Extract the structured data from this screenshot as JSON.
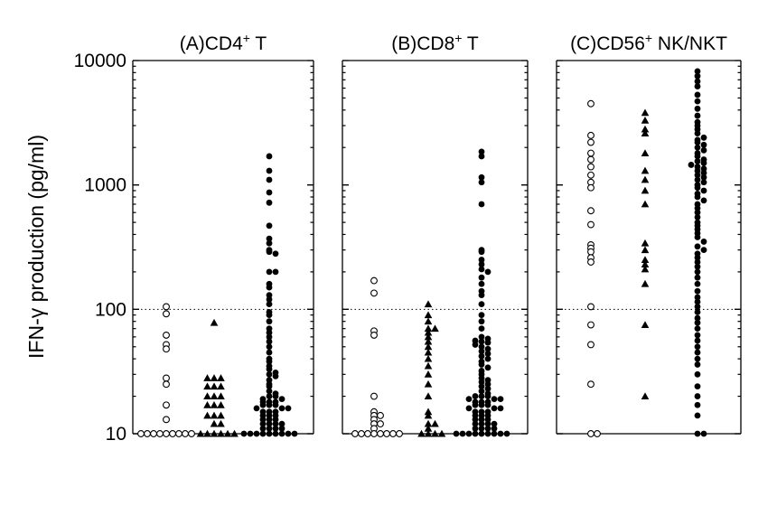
{
  "chart_data": {
    "type": "scatter",
    "ylabel": "IFN-γ production (pg/ml)",
    "y_scale": "log",
    "ylim": [
      10,
      10000
    ],
    "y_ticks": [
      10,
      100,
      1000,
      10000
    ],
    "y_tick_labels": [
      "10",
      "100",
      "1000",
      "10000"
    ],
    "reference_line": 100,
    "series_markers": [
      "open-circle",
      "filled-triangle",
      "filled-circle"
    ],
    "panels": [
      {
        "title": "(A)CD4",
        "title_sup": "+",
        "title_suffix": " T",
        "series": [
          {
            "marker": "open-circle",
            "values": [
              105,
              92,
              62,
              52,
              48,
              28,
              25,
              17,
              13,
              10,
              10,
              10,
              10,
              10,
              10,
              10,
              10,
              10
            ]
          },
          {
            "marker": "filled-triangle",
            "values": [
              78,
              28,
              28,
              28,
              24,
              24,
              24,
              20,
              20,
              20,
              17,
              17,
              17,
              14,
              14,
              14,
              12,
              12,
              10,
              10,
              10,
              10,
              10,
              10
            ]
          },
          {
            "marker": "filled-circle",
            "values": [
              1700,
              1300,
              1100,
              870,
              720,
              470,
              370,
              340,
              300,
              290,
              280,
              200,
              200,
              160,
              150,
              130,
              120,
              110,
              95,
              90,
              80,
              70,
              65,
              60,
              55,
              50,
              45,
              40,
              38,
              35,
              33,
              31,
              30,
              29,
              27,
              25,
              24,
              22,
              21,
              20,
              20,
              19,
              19,
              18,
              18,
              18,
              17,
              17,
              17,
              16,
              16,
              16,
              15,
              15,
              15,
              14,
              14,
              14,
              13,
              13,
              13,
              12,
              12,
              12,
              12,
              11,
              11,
              11,
              11,
              10,
              10,
              10,
              10,
              10,
              10,
              10,
              10,
              10
            ]
          }
        ]
      },
      {
        "title": "(B)CD8",
        "title_sup": "+",
        "title_suffix": " T",
        "series": [
          {
            "marker": "open-circle",
            "values": [
              170,
              135,
              67,
              62,
              20,
              15,
              14,
              14,
              13,
              12,
              12,
              11,
              10,
              10,
              10,
              10,
              10,
              10,
              10,
              10
            ]
          },
          {
            "marker": "filled-triangle",
            "values": [
              110,
              90,
              80,
              70,
              70,
              65,
              60,
              55,
              50,
              45,
              40,
              35,
              30,
              25,
              20,
              15,
              14,
              12,
              12,
              11,
              10,
              10,
              10,
              10
            ]
          },
          {
            "marker": "filled-circle",
            "values": [
              1850,
              1700,
              1150,
              1050,
              700,
              300,
              290,
              250,
              230,
              210,
              200,
              180,
              160,
              140,
              130,
              110,
              90,
              80,
              70,
              60,
              58,
              56,
              55,
              54,
              52,
              50,
              48,
              46,
              44,
              42,
              40,
              38,
              36,
              34,
              32,
              30,
              28,
              27,
              26,
              25,
              24,
              23,
              22,
              21,
              20,
              20,
              20,
              19,
              19,
              19,
              18,
              18,
              18,
              17,
              17,
              17,
              16,
              16,
              16,
              15,
              15,
              15,
              14,
              14,
              14,
              13,
              13,
              13,
              12,
              12,
              12,
              12,
              11,
              11,
              11,
              11,
              10,
              10,
              10,
              10,
              10,
              10,
              10,
              10,
              10
            ]
          }
        ]
      },
      {
        "title": "(C)CD56",
        "title_sup": "+",
        "title_suffix": " NK/NKT",
        "series": [
          {
            "marker": "open-circle",
            "values": [
              4500,
              2500,
              2200,
              1800,
              1600,
              1400,
              1200,
              1050,
              950,
              620,
              480,
              330,
              310,
              290,
              260,
              240,
              105,
              75,
              52,
              25,
              10,
              10
            ]
          },
          {
            "marker": "filled-triangle",
            "values": [
              3800,
              3300,
              2800,
              2600,
              1800,
              1300,
              1100,
              900,
              700,
              340,
              300,
              250,
              230,
              210,
              160,
              75,
              20
            ]
          },
          {
            "marker": "filled-circle",
            "values": [
              8200,
              7500,
              6800,
              6200,
              5300,
              4700,
              4100,
              3600,
              3200,
              3000,
              2800,
              2600,
              2400,
              2300,
              2200,
              2100,
              2000,
              1900,
              1800,
              1700,
              1600,
              1550,
              1500,
              1450,
              1400,
              1350,
              1300,
              1250,
              1200,
              1150,
              1100,
              1050,
              1000,
              950,
              900,
              850,
              800,
              750,
              700,
              650,
              600,
              550,
              500,
              470,
              440,
              410,
              380,
              350,
              320,
              300,
              280,
              260,
              240,
              220,
              200,
              180,
              160,
              140,
              125,
              115,
              105,
              95,
              85,
              78,
              70,
              62,
              56,
              50,
              45,
              40,
              36,
              30,
              24,
              20,
              17,
              14,
              10,
              10
            ]
          }
        ]
      }
    ]
  }
}
